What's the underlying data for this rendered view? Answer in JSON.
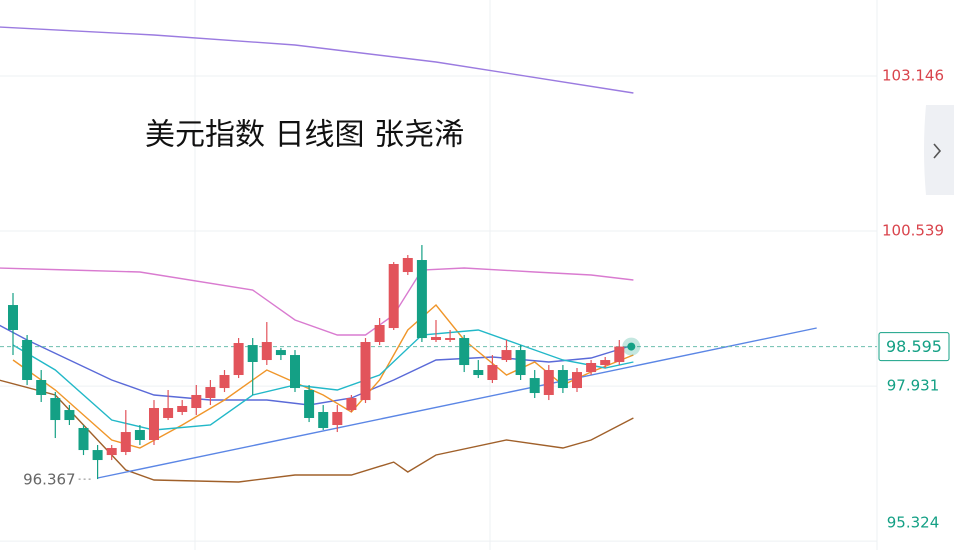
{
  "chart_data": {
    "type": "candlestick",
    "title": "美元指数 日线图 张尧浠",
    "ylim": [
      95.174,
      104.424
    ],
    "yticks": [
      95.324,
      97.931,
      100.539,
      103.146
    ],
    "up_color": "#e2545b",
    "down_color": "#14a085",
    "open": [
      99.294,
      98.706,
      98.033,
      97.73,
      97.528,
      97.226,
      96.855,
      96.771,
      96.822,
      97.192,
      97.024,
      97.394,
      97.495,
      97.562,
      97.73,
      97.898,
      98.117,
      98.621,
      98.369,
      98.537,
      98.453,
      97.865,
      97.495,
      97.276,
      97.528,
      97.696,
      98.672,
      98.907,
      99.849,
      100.051,
      98.706,
      98.706,
      98.739,
      98.201,
      98.033,
      98.369,
      98.537,
      98.066,
      97.781,
      98.201,
      97.898,
      98.167,
      98.285,
      98.336
    ],
    "high": [
      99.496,
      98.79,
      98.201,
      97.831,
      97.612,
      97.276,
      96.94,
      96.94,
      97.528,
      97.276,
      97.696,
      97.865,
      97.696,
      97.949,
      98.033,
      98.201,
      98.739,
      98.739,
      99.008,
      98.571,
      98.537,
      97.949,
      97.612,
      97.612,
      97.781,
      98.739,
      99.076,
      100.017,
      100.135,
      100.303,
      99.042,
      98.874,
      98.79,
      98.369,
      98.453,
      98.706,
      98.621,
      98.201,
      98.285,
      98.285,
      98.235,
      98.369,
      98.42,
      98.706
    ],
    "low": [
      98.453,
      97.949,
      97.663,
      97.057,
      97.276,
      96.771,
      96.367,
      96.687,
      96.771,
      96.94,
      96.94,
      97.36,
      97.444,
      97.444,
      97.612,
      97.831,
      98.066,
      97.781,
      98.285,
      98.369,
      97.831,
      97.326,
      97.192,
      97.158,
      97.495,
      97.646,
      98.621,
      98.874,
      99.799,
      98.672,
      98.672,
      98.672,
      98.167,
      98.066,
      97.982,
      98.336,
      98.033,
      97.73,
      97.696,
      97.814,
      97.831,
      98.117,
      98.235,
      98.285
    ],
    "close": [
      98.874,
      98.033,
      97.781,
      97.36,
      97.36,
      96.855,
      96.687,
      96.889,
      97.158,
      97.024,
      97.562,
      97.562,
      97.596,
      97.781,
      97.915,
      98.117,
      98.655,
      98.336,
      98.672,
      98.453,
      97.898,
      97.394,
      97.226,
      97.495,
      97.73,
      98.672,
      98.958,
      99.984,
      100.085,
      98.739,
      98.756,
      98.739,
      98.285,
      98.117,
      98.285,
      98.537,
      98.117,
      97.814,
      98.201,
      97.898,
      98.167,
      98.319,
      98.369,
      98.595
    ],
    "lines": [
      {
        "color": "#9b7be0",
        "x": [
          -1,
          10,
          20,
          30,
          44
        ],
        "values": [
          103.97,
          103.835,
          103.667,
          103.381,
          102.86
        ]
      },
      {
        "color": "#d97bd0",
        "x": [
          -1,
          4,
          9,
          17,
          20,
          23,
          25,
          27,
          29,
          32,
          37,
          41,
          44
        ],
        "values": [
          99.917,
          99.883,
          99.849,
          99.547,
          99.042,
          98.79,
          98.79,
          99.126,
          99.883,
          99.917,
          99.849,
          99.799,
          99.715
        ]
      },
      {
        "color": "#a0602a",
        "x": [
          -1,
          3,
          6,
          8,
          10,
          16,
          20,
          24,
          27,
          28,
          30,
          35,
          39,
          41,
          44
        ],
        "values": [
          98.033,
          97.781,
          97.024,
          96.519,
          96.351,
          96.317,
          96.435,
          96.435,
          96.653,
          96.486,
          96.771,
          97.024,
          96.889,
          97.024,
          97.394
        ]
      },
      {
        "color": "#5a6ad8",
        "x": [
          -1,
          1,
          4,
          7,
          10,
          14,
          18,
          21,
          24,
          27,
          30,
          34,
          38,
          41,
          44
        ],
        "values": [
          98.958,
          98.706,
          98.369,
          98.033,
          97.781,
          97.696,
          97.696,
          97.612,
          97.73,
          98.033,
          98.369,
          98.42,
          98.336,
          98.403,
          98.621
        ]
      },
      {
        "color": "#f0962a",
        "x": [
          0,
          3,
          7,
          9,
          12,
          15,
          18,
          22,
          24,
          26,
          28,
          30,
          32,
          35,
          37,
          39,
          41,
          44
        ],
        "values": [
          98.369,
          97.865,
          97.024,
          96.889,
          97.276,
          97.696,
          98.201,
          97.781,
          97.495,
          98.033,
          98.874,
          99.294,
          98.706,
          98.117,
          98.336,
          97.949,
          98.167,
          98.453
        ]
      },
      {
        "color": "#22b8c8",
        "x": [
          0,
          3,
          7,
          10,
          14,
          17,
          20,
          23,
          26,
          29,
          33,
          36,
          39,
          42,
          44
        ],
        "values": [
          98.621,
          98.201,
          97.36,
          97.192,
          97.276,
          97.781,
          97.949,
          97.865,
          98.117,
          98.79,
          98.874,
          98.621,
          98.369,
          98.235,
          98.336
        ]
      },
      {
        "color": "#5b86e5",
        "x": [
          6,
          57
        ],
        "values": [
          96.385,
          98.907
        ]
      }
    ]
  }
}
